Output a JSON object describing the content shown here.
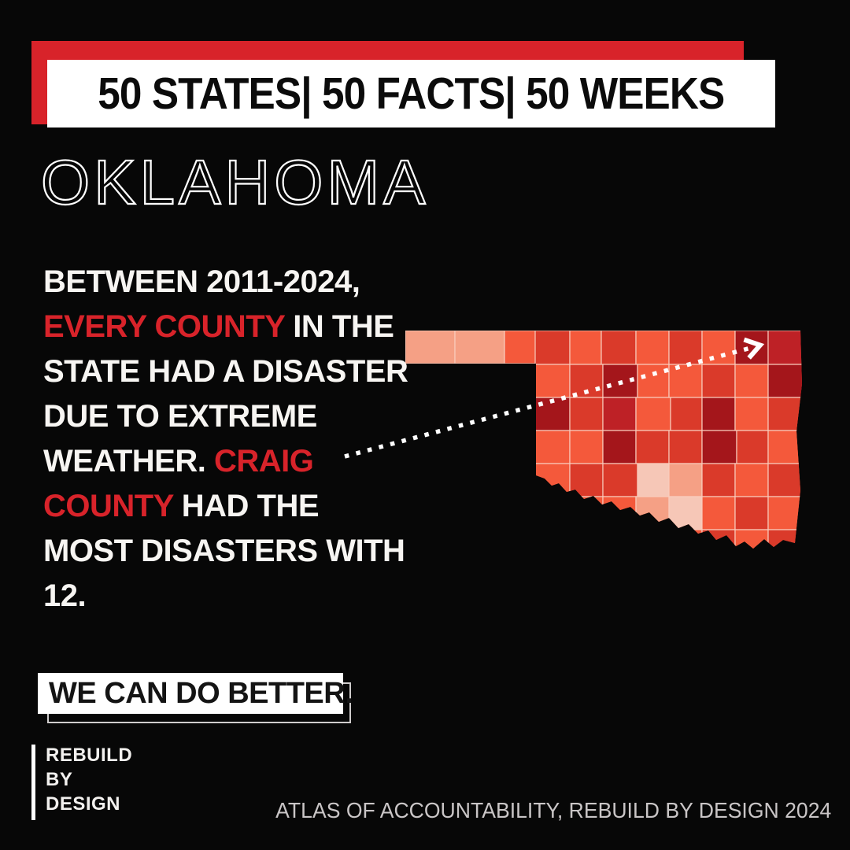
{
  "page": {
    "background": "#070707",
    "accent_red": "#D8232A"
  },
  "banner": {
    "title": "50 STATES| 50 FACTS| 50 WEEKS",
    "bar_color": "#D8232A",
    "box_bg": "#FFFFFF"
  },
  "state": {
    "name": "OKLAHOMA"
  },
  "fact": {
    "highlight_color": "#D8232A",
    "text_color": "#F7F5F2",
    "lines": [
      [
        {
          "t": "BETWEEN 2011-2024,",
          "red": false
        }
      ],
      [
        {
          "t": "EVERY COUNTY",
          "red": true
        },
        {
          "t": " IN THE",
          "red": false
        }
      ],
      [
        {
          "t": "STATE HAD A DISASTER",
          "red": false
        }
      ],
      [
        {
          "t": "DUE TO EXTREME",
          "red": false
        }
      ],
      [
        {
          "t": "WEATHER. ",
          "red": false
        },
        {
          "t": "CRAIG",
          "red": true
        }
      ],
      [
        {
          "t": "COUNTY",
          "red": true
        },
        {
          "t": " HAD THE",
          "red": false
        }
      ],
      [
        {
          "t": "MOST DISASTERS WITH",
          "red": false
        }
      ],
      [
        {
          "t": "12.",
          "red": false
        }
      ]
    ]
  },
  "map": {
    "label": "oklahoma-counties-choropleth",
    "county_stroke": "#F9CDBD",
    "palette": {
      "pale": "#F6C7B7",
      "peach": "#F5A085",
      "salmon": "#F4593B",
      "red": "#DA3A2A",
      "dkred": "#BE2126",
      "darkest": "#A4161B"
    },
    "counties": [
      [
        10,
        12,
        63,
        42,
        "peach"
      ],
      [
        73,
        12,
        63,
        42,
        "peach"
      ],
      [
        136,
        12,
        40,
        42,
        "salmon"
      ],
      [
        175,
        12,
        44,
        43,
        "red"
      ],
      [
        219,
        12,
        40,
        43,
        "salmon"
      ],
      [
        259,
        12,
        44,
        43,
        "red"
      ],
      [
        303,
        12,
        42,
        43,
        "salmon"
      ],
      [
        345,
        12,
        42,
        43,
        "red"
      ],
      [
        387,
        12,
        42,
        43,
        "salmon"
      ],
      [
        429,
        12,
        42,
        43,
        "darkest"
      ],
      [
        471,
        12,
        44,
        43,
        "dkred"
      ],
      [
        175,
        55,
        44,
        42,
        "salmon"
      ],
      [
        219,
        55,
        42,
        42,
        "red"
      ],
      [
        261,
        55,
        44,
        42,
        "darkest"
      ],
      [
        305,
        55,
        40,
        42,
        "salmon"
      ],
      [
        345,
        55,
        42,
        42,
        "salmon"
      ],
      [
        387,
        55,
        42,
        42,
        "red"
      ],
      [
        429,
        55,
        42,
        42,
        "salmon"
      ],
      [
        471,
        55,
        44,
        42,
        "darkest"
      ],
      [
        175,
        97,
        44,
        42,
        "darkest"
      ],
      [
        219,
        97,
        42,
        42,
        "red"
      ],
      [
        261,
        97,
        42,
        42,
        "dkred"
      ],
      [
        303,
        97,
        44,
        42,
        "salmon"
      ],
      [
        347,
        97,
        40,
        42,
        "red"
      ],
      [
        387,
        97,
        42,
        42,
        "darkest"
      ],
      [
        429,
        97,
        42,
        42,
        "salmon"
      ],
      [
        471,
        97,
        44,
        42,
        "red"
      ],
      [
        175,
        139,
        44,
        42,
        "salmon"
      ],
      [
        219,
        139,
        42,
        42,
        "salmon"
      ],
      [
        261,
        139,
        42,
        42,
        "darkest"
      ],
      [
        303,
        139,
        42,
        42,
        "red"
      ],
      [
        345,
        139,
        42,
        42,
        "red"
      ],
      [
        387,
        139,
        44,
        42,
        "darkest"
      ],
      [
        431,
        139,
        40,
        42,
        "red"
      ],
      [
        471,
        139,
        44,
        42,
        "salmon"
      ],
      [
        175,
        181,
        44,
        42,
        "salmon"
      ],
      [
        219,
        181,
        42,
        42,
        "red"
      ],
      [
        261,
        181,
        44,
        42,
        "red"
      ],
      [
        305,
        181,
        40,
        42,
        "pale"
      ],
      [
        345,
        181,
        42,
        42,
        "peach"
      ],
      [
        387,
        181,
        42,
        42,
        "red"
      ],
      [
        429,
        181,
        42,
        42,
        "salmon"
      ],
      [
        471,
        181,
        44,
        42,
        "red"
      ],
      [
        175,
        223,
        44,
        42,
        "red"
      ],
      [
        219,
        223,
        42,
        42,
        "salmon"
      ],
      [
        261,
        223,
        42,
        42,
        "salmon"
      ],
      [
        303,
        223,
        42,
        42,
        "peach"
      ],
      [
        345,
        223,
        42,
        42,
        "pale"
      ],
      [
        387,
        223,
        42,
        42,
        "salmon"
      ],
      [
        429,
        223,
        42,
        42,
        "red"
      ],
      [
        471,
        223,
        44,
        42,
        "salmon"
      ],
      [
        175,
        265,
        44,
        30,
        "salmon"
      ],
      [
        219,
        265,
        42,
        30,
        "red"
      ],
      [
        261,
        265,
        42,
        30,
        "salmon"
      ],
      [
        303,
        265,
        42,
        30,
        "salmon"
      ],
      [
        345,
        265,
        42,
        30,
        "salmon"
      ],
      [
        387,
        265,
        42,
        30,
        "red"
      ],
      [
        429,
        265,
        42,
        30,
        "salmon"
      ],
      [
        471,
        265,
        44,
        30,
        "red"
      ]
    ],
    "arrow": {
      "color": "#FFFFFF",
      "target": "Craig County"
    }
  },
  "cta": {
    "label": "WE CAN DO BETTER.",
    "box_bg": "#FFFFFF"
  },
  "logo": {
    "lines": [
      "REBUILD",
      "BY",
      "DESIGN"
    ]
  },
  "attribution": {
    "text": "ATLAS OF ACCOUNTABILITY, REBUILD BY DESIGN 2024",
    "color": "#C9C5C6"
  }
}
